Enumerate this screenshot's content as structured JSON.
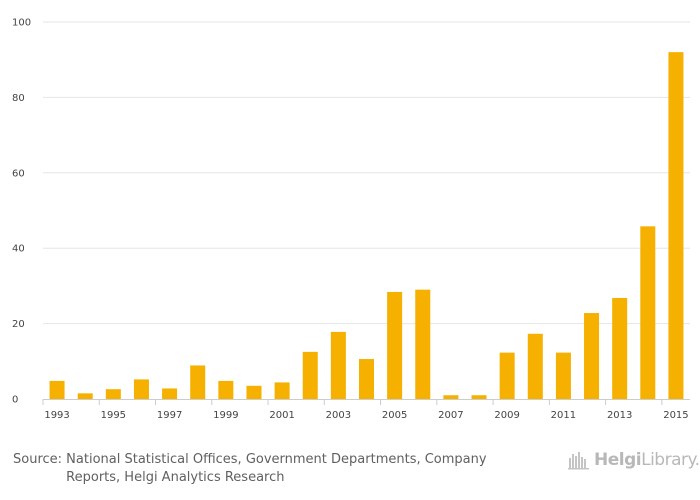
{
  "chart_data": {
    "type": "bar",
    "categories": [
      "1993",
      "1994",
      "1995",
      "1996",
      "1997",
      "1998",
      "1999",
      "2000",
      "2001",
      "2002",
      "2003",
      "2004",
      "2005",
      "2006",
      "2007",
      "2008",
      "2009",
      "2010",
      "2011",
      "2012",
      "2013",
      "2014",
      "2015"
    ],
    "values": [
      4.8,
      1.5,
      2.6,
      5.2,
      2.8,
      8.9,
      4.8,
      3.5,
      4.4,
      12.5,
      17.8,
      10.6,
      28.4,
      29.0,
      1.0,
      1.0,
      12.3,
      17.3,
      12.3,
      22.8,
      26.8,
      45.8,
      92.0
    ],
    "x_tick_labels": [
      "1993",
      "1995",
      "1997",
      "1999",
      "2001",
      "2003",
      "2005",
      "2007",
      "2009",
      "2011",
      "2013",
      "2015"
    ],
    "y_ticks": [
      0,
      20,
      40,
      60,
      80,
      100
    ],
    "ylim": [
      0,
      100
    ],
    "title": "",
    "xlabel": "",
    "ylabel": "",
    "grid": true,
    "bar_color": "#f5b000"
  },
  "footer": {
    "source_label": "Source:",
    "source_text": "National Statistical Offices, Government Departments, Company Reports, Helgi Analytics Research",
    "logo_bold": "Helgi",
    "logo_light": "Library."
  },
  "colors": {
    "grid": "#e6e6e6",
    "axis": "#cccccc",
    "logo": "#b8b8b8"
  }
}
